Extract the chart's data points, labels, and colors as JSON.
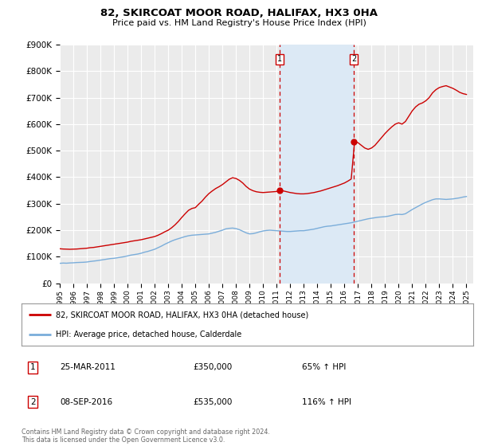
{
  "title": "82, SKIRCOAT MOOR ROAD, HALIFAX, HX3 0HA",
  "subtitle": "Price paid vs. HM Land Registry's House Price Index (HPI)",
  "ylim": [
    0,
    900000
  ],
  "yticks": [
    0,
    100000,
    200000,
    300000,
    400000,
    500000,
    600000,
    700000,
    800000,
    900000
  ],
  "ytick_labels": [
    "£0",
    "£100K",
    "£200K",
    "£300K",
    "£400K",
    "£500K",
    "£600K",
    "£700K",
    "£800K",
    "£900K"
  ],
  "xlim_start": 1995.0,
  "xlim_end": 2025.5,
  "background_color": "#ffffff",
  "plot_bg_color": "#ebebeb",
  "grid_color": "#ffffff",
  "sale1_x": 2011.23,
  "sale1_y": 350000,
  "sale2_x": 2016.69,
  "sale2_y": 535000,
  "sale1_date": "25-MAR-2011",
  "sale1_price": "£350,000",
  "sale1_hpi": "65% ↑ HPI",
  "sale2_date": "08-SEP-2016",
  "sale2_price": "£535,000",
  "sale2_hpi": "116% ↑ HPI",
  "shade_color": "#dce9f5",
  "vline_color": "#cc0000",
  "red_line_color": "#cc0000",
  "blue_line_color": "#7aadda",
  "legend_label_red": "82, SKIRCOAT MOOR ROAD, HALIFAX, HX3 0HA (detached house)",
  "legend_label_blue": "HPI: Average price, detached house, Calderdale",
  "footnote": "Contains HM Land Registry data © Crown copyright and database right 2024.\nThis data is licensed under the Open Government Licence v3.0.",
  "hpi_data": [
    [
      1995.0,
      75000
    ],
    [
      1995.25,
      76000
    ],
    [
      1995.5,
      75500
    ],
    [
      1995.75,
      76500
    ],
    [
      1996.0,
      77000
    ],
    [
      1996.25,
      78000
    ],
    [
      1996.5,
      78500
    ],
    [
      1996.75,
      79000
    ],
    [
      1997.0,
      80000
    ],
    [
      1997.25,
      82000
    ],
    [
      1997.5,
      83500
    ],
    [
      1997.75,
      85000
    ],
    [
      1998.0,
      87000
    ],
    [
      1998.25,
      89000
    ],
    [
      1998.5,
      91000
    ],
    [
      1998.75,
      93000
    ],
    [
      1999.0,
      94000
    ],
    [
      1999.25,
      96000
    ],
    [
      1999.5,
      98000
    ],
    [
      1999.75,
      100000
    ],
    [
      2000.0,
      103000
    ],
    [
      2000.25,
      106000
    ],
    [
      2000.5,
      108000
    ],
    [
      2000.75,
      110000
    ],
    [
      2001.0,
      113000
    ],
    [
      2001.25,
      117000
    ],
    [
      2001.5,
      120000
    ],
    [
      2001.75,
      124000
    ],
    [
      2002.0,
      128000
    ],
    [
      2002.25,
      134000
    ],
    [
      2002.5,
      140000
    ],
    [
      2002.75,
      147000
    ],
    [
      2003.0,
      153000
    ],
    [
      2003.25,
      159000
    ],
    [
      2003.5,
      164000
    ],
    [
      2003.75,
      168000
    ],
    [
      2004.0,
      172000
    ],
    [
      2004.25,
      176000
    ],
    [
      2004.5,
      179000
    ],
    [
      2004.75,
      181000
    ],
    [
      2005.0,
      182000
    ],
    [
      2005.25,
      183000
    ],
    [
      2005.5,
      184000
    ],
    [
      2005.75,
      185000
    ],
    [
      2006.0,
      186000
    ],
    [
      2006.25,
      189000
    ],
    [
      2006.5,
      192000
    ],
    [
      2006.75,
      196000
    ],
    [
      2007.0,
      200000
    ],
    [
      2007.25,
      205000
    ],
    [
      2007.5,
      207000
    ],
    [
      2007.75,
      208000
    ],
    [
      2008.0,
      206000
    ],
    [
      2008.25,
      202000
    ],
    [
      2008.5,
      196000
    ],
    [
      2008.75,
      190000
    ],
    [
      2009.0,
      186000
    ],
    [
      2009.25,
      187000
    ],
    [
      2009.5,
      190000
    ],
    [
      2009.75,
      194000
    ],
    [
      2010.0,
      197000
    ],
    [
      2010.25,
      199000
    ],
    [
      2010.5,
      200000
    ],
    [
      2010.75,
      199000
    ],
    [
      2011.0,
      198000
    ],
    [
      2011.25,
      197000
    ],
    [
      2011.5,
      196000
    ],
    [
      2011.75,
      195000
    ],
    [
      2012.0,
      195000
    ],
    [
      2012.25,
      196000
    ],
    [
      2012.5,
      197000
    ],
    [
      2012.75,
      198000
    ],
    [
      2013.0,
      198000
    ],
    [
      2013.25,
      200000
    ],
    [
      2013.5,
      202000
    ],
    [
      2013.75,
      204000
    ],
    [
      2014.0,
      207000
    ],
    [
      2014.25,
      210000
    ],
    [
      2014.5,
      213000
    ],
    [
      2014.75,
      215000
    ],
    [
      2015.0,
      216000
    ],
    [
      2015.25,
      218000
    ],
    [
      2015.5,
      220000
    ],
    [
      2015.75,
      222000
    ],
    [
      2016.0,
      224000
    ],
    [
      2016.25,
      226000
    ],
    [
      2016.5,
      228000
    ],
    [
      2016.75,
      231000
    ],
    [
      2017.0,
      234000
    ],
    [
      2017.25,
      237000
    ],
    [
      2017.5,
      240000
    ],
    [
      2017.75,
      243000
    ],
    [
      2018.0,
      245000
    ],
    [
      2018.25,
      247000
    ],
    [
      2018.5,
      249000
    ],
    [
      2018.75,
      250000
    ],
    [
      2019.0,
      251000
    ],
    [
      2019.25,
      253000
    ],
    [
      2019.5,
      256000
    ],
    [
      2019.75,
      259000
    ],
    [
      2020.0,
      260000
    ],
    [
      2020.25,
      259000
    ],
    [
      2020.5,
      262000
    ],
    [
      2020.75,
      270000
    ],
    [
      2021.0,
      278000
    ],
    [
      2021.25,
      285000
    ],
    [
      2021.5,
      292000
    ],
    [
      2021.75,
      299000
    ],
    [
      2022.0,
      305000
    ],
    [
      2022.25,
      310000
    ],
    [
      2022.5,
      315000
    ],
    [
      2022.75,
      318000
    ],
    [
      2023.0,
      318000
    ],
    [
      2023.25,
      317000
    ],
    [
      2023.5,
      316000
    ],
    [
      2023.75,
      317000
    ],
    [
      2024.0,
      318000
    ],
    [
      2024.25,
      320000
    ],
    [
      2024.5,
      322000
    ],
    [
      2024.75,
      325000
    ],
    [
      2025.0,
      327000
    ]
  ],
  "property_data": [
    [
      1995.0,
      130000
    ],
    [
      1995.25,
      129000
    ],
    [
      1995.5,
      128500
    ],
    [
      1995.75,
      128000
    ],
    [
      1996.0,
      128500
    ],
    [
      1996.25,
      129000
    ],
    [
      1996.5,
      130000
    ],
    [
      1996.75,
      131000
    ],
    [
      1997.0,
      132000
    ],
    [
      1997.25,
      134000
    ],
    [
      1997.5,
      135000
    ],
    [
      1997.75,
      137000
    ],
    [
      1998.0,
      139000
    ],
    [
      1998.25,
      141000
    ],
    [
      1998.5,
      143000
    ],
    [
      1998.75,
      145000
    ],
    [
      1999.0,
      147000
    ],
    [
      1999.25,
      149000
    ],
    [
      1999.5,
      151000
    ],
    [
      1999.75,
      153000
    ],
    [
      2000.0,
      155000
    ],
    [
      2000.25,
      158000
    ],
    [
      2000.5,
      160000
    ],
    [
      2000.75,
      162000
    ],
    [
      2001.0,
      164000
    ],
    [
      2001.25,
      167000
    ],
    [
      2001.5,
      170000
    ],
    [
      2001.75,
      173000
    ],
    [
      2002.0,
      176000
    ],
    [
      2002.25,
      181000
    ],
    [
      2002.5,
      187000
    ],
    [
      2002.75,
      194000
    ],
    [
      2003.0,
      200000
    ],
    [
      2003.25,
      209000
    ],
    [
      2003.5,
      220000
    ],
    [
      2003.75,
      233000
    ],
    [
      2004.0,
      248000
    ],
    [
      2004.25,
      262000
    ],
    [
      2004.5,
      275000
    ],
    [
      2004.75,
      282000
    ],
    [
      2005.0,
      285000
    ],
    [
      2005.25,
      298000
    ],
    [
      2005.5,
      310000
    ],
    [
      2005.75,
      325000
    ],
    [
      2006.0,
      338000
    ],
    [
      2006.25,
      348000
    ],
    [
      2006.5,
      357000
    ],
    [
      2006.75,
      364000
    ],
    [
      2007.0,
      372000
    ],
    [
      2007.25,
      382000
    ],
    [
      2007.5,
      392000
    ],
    [
      2007.75,
      398000
    ],
    [
      2008.0,
      395000
    ],
    [
      2008.25,
      388000
    ],
    [
      2008.5,
      378000
    ],
    [
      2008.75,
      365000
    ],
    [
      2009.0,
      355000
    ],
    [
      2009.25,
      349000
    ],
    [
      2009.5,
      345000
    ],
    [
      2009.75,
      343000
    ],
    [
      2010.0,
      342000
    ],
    [
      2010.25,
      343000
    ],
    [
      2010.5,
      344000
    ],
    [
      2010.75,
      345000
    ],
    [
      2011.0,
      346000
    ],
    [
      2011.25,
      350000
    ],
    [
      2011.5,
      348000
    ],
    [
      2011.75,
      345000
    ],
    [
      2012.0,
      342000
    ],
    [
      2012.25,
      340000
    ],
    [
      2012.5,
      338000
    ],
    [
      2012.75,
      337000
    ],
    [
      2013.0,
      337000
    ],
    [
      2013.25,
      338000
    ],
    [
      2013.5,
      340000
    ],
    [
      2013.75,
      342000
    ],
    [
      2014.0,
      345000
    ],
    [
      2014.25,
      348000
    ],
    [
      2014.5,
      352000
    ],
    [
      2014.75,
      356000
    ],
    [
      2015.0,
      360000
    ],
    [
      2015.25,
      364000
    ],
    [
      2015.5,
      368000
    ],
    [
      2015.75,
      373000
    ],
    [
      2016.0,
      378000
    ],
    [
      2016.25,
      385000
    ],
    [
      2016.5,
      393000
    ],
    [
      2016.75,
      535000
    ],
    [
      2017.0,
      530000
    ],
    [
      2017.25,
      520000
    ],
    [
      2017.5,
      510000
    ],
    [
      2017.75,
      505000
    ],
    [
      2018.0,
      510000
    ],
    [
      2018.25,
      520000
    ],
    [
      2018.5,
      535000
    ],
    [
      2018.75,
      550000
    ],
    [
      2019.0,
      565000
    ],
    [
      2019.25,
      578000
    ],
    [
      2019.5,
      590000
    ],
    [
      2019.75,
      600000
    ],
    [
      2020.0,
      605000
    ],
    [
      2020.25,
      600000
    ],
    [
      2020.5,
      610000
    ],
    [
      2020.75,
      630000
    ],
    [
      2021.0,
      650000
    ],
    [
      2021.25,
      665000
    ],
    [
      2021.5,
      675000
    ],
    [
      2021.75,
      680000
    ],
    [
      2022.0,
      688000
    ],
    [
      2022.25,
      700000
    ],
    [
      2022.5,
      718000
    ],
    [
      2022.75,
      730000
    ],
    [
      2023.0,
      738000
    ],
    [
      2023.25,
      742000
    ],
    [
      2023.5,
      745000
    ],
    [
      2023.75,
      740000
    ],
    [
      2024.0,
      735000
    ],
    [
      2024.25,
      728000
    ],
    [
      2024.5,
      720000
    ],
    [
      2024.75,
      715000
    ],
    [
      2025.0,
      712000
    ]
  ]
}
